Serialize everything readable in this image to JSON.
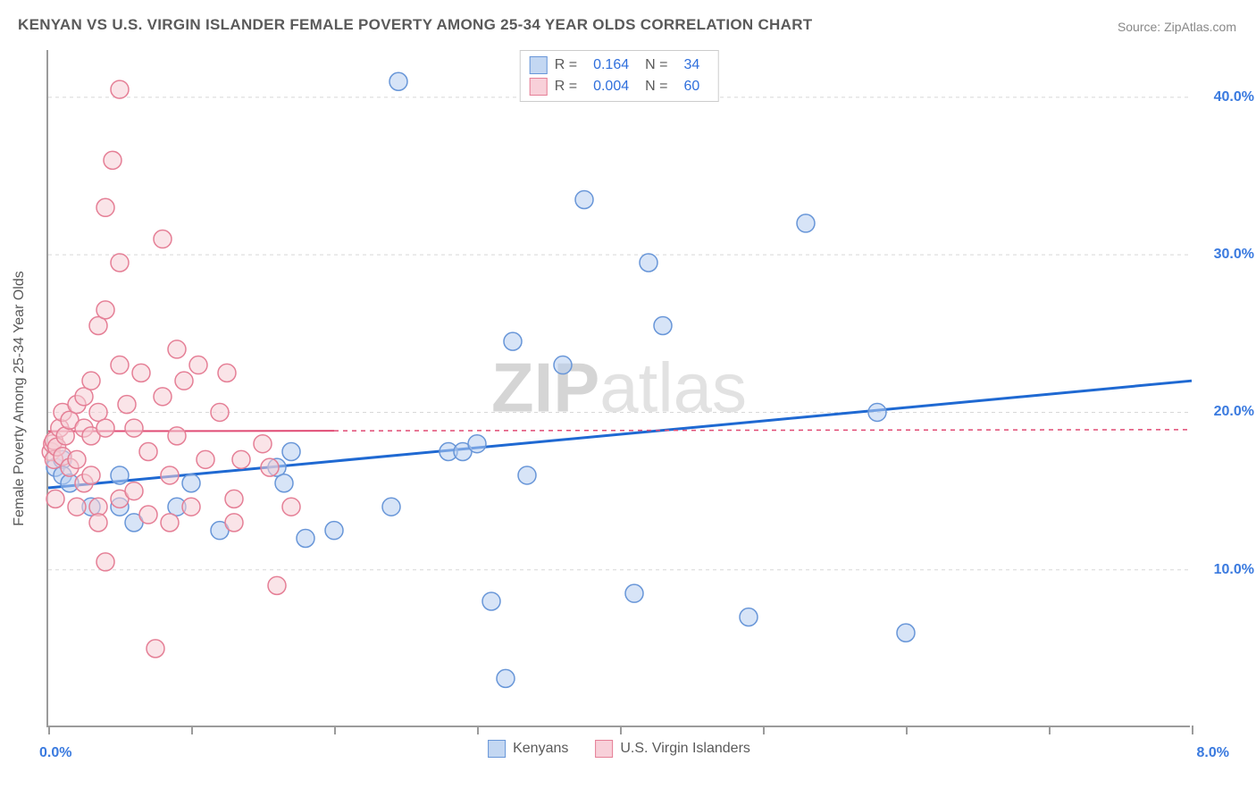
{
  "title": "KENYAN VS U.S. VIRGIN ISLANDER FEMALE POVERTY AMONG 25-34 YEAR OLDS CORRELATION CHART",
  "source": "Source: ZipAtlas.com",
  "ylabel": "Female Poverty Among 25-34 Year Olds",
  "watermark": {
    "left": "ZIP",
    "right": "atlas"
  },
  "chart": {
    "type": "scatter",
    "xlim": [
      0.0,
      8.0
    ],
    "ylim": [
      0.0,
      43.0
    ],
    "xticks": [
      0.0,
      1.0,
      2.0,
      3.0,
      4.0,
      5.0,
      6.0,
      7.0,
      8.0
    ],
    "xtick_labels": {
      "0": "0.0%",
      "8": "8.0%"
    },
    "yticks": [
      10.0,
      20.0,
      30.0,
      40.0
    ],
    "ytick_labels": [
      "10.0%",
      "20.0%",
      "30.0%",
      "40.0%"
    ],
    "grid_color": "#d8d8d8",
    "axis_color": "#9b9b9b",
    "background_color": "#ffffff",
    "marker_radius": 10,
    "marker_opacity": 0.55,
    "series": [
      {
        "name": "Kenyans",
        "color_fill": "#b7cef0",
        "color_stroke": "#6896d8",
        "swatch_fill": "#c3d7f2",
        "swatch_border": "#6896d8",
        "R": "0.164",
        "N": "34",
        "trend": {
          "x1": 0.0,
          "y1": 15.2,
          "x2": 8.0,
          "y2": 22.0,
          "solid_until_x": 8.0,
          "color": "#1f69d2",
          "width": 3
        },
        "points": [
          [
            0.05,
            16.5
          ],
          [
            0.1,
            17.0
          ],
          [
            0.1,
            16.0
          ],
          [
            0.15,
            15.5
          ],
          [
            0.3,
            14.0
          ],
          [
            0.5,
            16.0
          ],
          [
            0.5,
            14.0
          ],
          [
            0.6,
            13.0
          ],
          [
            0.9,
            14.0
          ],
          [
            1.0,
            15.5
          ],
          [
            1.2,
            12.5
          ],
          [
            1.6,
            16.5
          ],
          [
            1.65,
            15.5
          ],
          [
            1.7,
            17.5
          ],
          [
            1.8,
            12.0
          ],
          [
            2.0,
            12.5
          ],
          [
            2.4,
            14.0
          ],
          [
            2.8,
            17.5
          ],
          [
            2.9,
            17.5
          ],
          [
            2.45,
            41.0
          ],
          [
            3.0,
            18.0
          ],
          [
            3.1,
            8.0
          ],
          [
            3.2,
            3.1
          ],
          [
            3.25,
            24.5
          ],
          [
            3.35,
            16.0
          ],
          [
            3.6,
            23.0
          ],
          [
            3.75,
            33.5
          ],
          [
            4.1,
            8.5
          ],
          [
            4.2,
            29.5
          ],
          [
            4.3,
            25.5
          ],
          [
            5.3,
            32.0
          ],
          [
            5.8,
            20.0
          ],
          [
            4.9,
            7.0
          ],
          [
            6.0,
            6.0
          ]
        ]
      },
      {
        "name": "U.S. Virgin Islanders",
        "color_fill": "#f5cdd6",
        "color_stroke": "#e57f96",
        "swatch_fill": "#f8d0d9",
        "swatch_border": "#e57f96",
        "R": "0.004",
        "N": "60",
        "trend": {
          "x1": 0.0,
          "y1": 18.8,
          "x2": 8.0,
          "y2": 18.9,
          "solid_until_x": 2.0,
          "color": "#e04b74",
          "width": 2
        },
        "points": [
          [
            0.02,
            17.5
          ],
          [
            0.03,
            18.0
          ],
          [
            0.04,
            17.0
          ],
          [
            0.04,
            18.2
          ],
          [
            0.06,
            17.8
          ],
          [
            0.05,
            14.5
          ],
          [
            0.08,
            19.0
          ],
          [
            0.1,
            17.2
          ],
          [
            0.1,
            20.0
          ],
          [
            0.12,
            18.5
          ],
          [
            0.15,
            19.5
          ],
          [
            0.15,
            16.5
          ],
          [
            0.2,
            20.5
          ],
          [
            0.2,
            17.0
          ],
          [
            0.2,
            14.0
          ],
          [
            0.25,
            21.0
          ],
          [
            0.25,
            19.0
          ],
          [
            0.25,
            15.5
          ],
          [
            0.3,
            22.0
          ],
          [
            0.3,
            18.5
          ],
          [
            0.3,
            16.0
          ],
          [
            0.35,
            25.5
          ],
          [
            0.35,
            20.0
          ],
          [
            0.35,
            14.0
          ],
          [
            0.35,
            13.0
          ],
          [
            0.4,
            33.0
          ],
          [
            0.4,
            26.5
          ],
          [
            0.4,
            19.0
          ],
          [
            0.4,
            10.5
          ],
          [
            0.45,
            36.0
          ],
          [
            0.5,
            40.5
          ],
          [
            0.5,
            29.5
          ],
          [
            0.5,
            23.0
          ],
          [
            0.5,
            14.5
          ],
          [
            0.55,
            20.5
          ],
          [
            0.6,
            19.0
          ],
          [
            0.6,
            15.0
          ],
          [
            0.65,
            22.5
          ],
          [
            0.7,
            17.5
          ],
          [
            0.7,
            13.5
          ],
          [
            0.75,
            5.0
          ],
          [
            0.8,
            31.0
          ],
          [
            0.8,
            21.0
          ],
          [
            0.85,
            16.0
          ],
          [
            0.85,
            13.0
          ],
          [
            0.9,
            24.0
          ],
          [
            0.9,
            18.5
          ],
          [
            0.95,
            22.0
          ],
          [
            1.0,
            14.0
          ],
          [
            1.05,
            23.0
          ],
          [
            1.1,
            17.0
          ],
          [
            1.2,
            20.0
          ],
          [
            1.25,
            22.5
          ],
          [
            1.3,
            14.5
          ],
          [
            1.3,
            13.0
          ],
          [
            1.35,
            17.0
          ],
          [
            1.5,
            18.0
          ],
          [
            1.55,
            16.5
          ],
          [
            1.6,
            9.0
          ],
          [
            1.7,
            14.0
          ]
        ]
      }
    ]
  },
  "stats_box": {
    "R_label": "R =",
    "N_label": "N ="
  },
  "legend": {
    "items": [
      {
        "label": "Kenyans",
        "series_idx": 0
      },
      {
        "label": "U.S. Virgin Islanders",
        "series_idx": 1
      }
    ]
  }
}
